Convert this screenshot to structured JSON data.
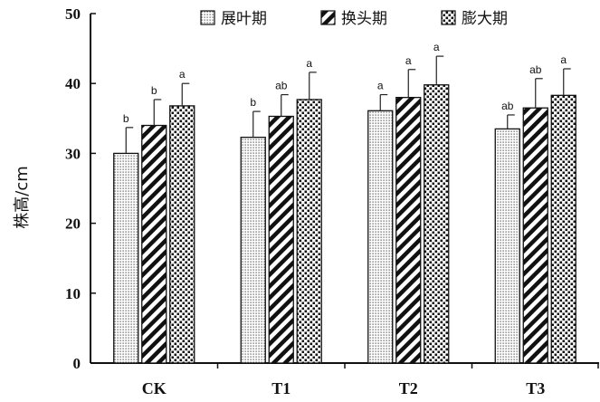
{
  "chart_data": {
    "type": "bar",
    "ylabel": "株高/cm",
    "ylim": [
      0,
      50
    ],
    "yticks": [
      0,
      10,
      20,
      30,
      40,
      50
    ],
    "categories": [
      "CK",
      "T1",
      "T2",
      "T3"
    ],
    "legend_position": "top-right",
    "series": [
      {
        "name": "展叶期",
        "pattern": "fine-dots",
        "values": [
          30.0,
          32.3,
          36.1,
          33.5
        ],
        "errors": [
          3.7,
          3.7,
          2.3,
          2.0
        ],
        "labels": [
          "b",
          "b",
          "a",
          "ab"
        ]
      },
      {
        "name": "换头期",
        "pattern": "diagonal-stripes",
        "values": [
          34.0,
          35.3,
          38.0,
          36.5
        ],
        "errors": [
          3.7,
          3.1,
          4.0,
          4.2
        ],
        "labels": [
          "b",
          "ab",
          "a",
          "ab"
        ]
      },
      {
        "name": "膨大期",
        "pattern": "coarse-dots",
        "values": [
          36.8,
          37.7,
          39.8,
          38.3
        ],
        "errors": [
          3.2,
          3.9,
          4.1,
          3.8
        ],
        "labels": [
          "a",
          "a",
          "a",
          "a"
        ]
      }
    ]
  }
}
